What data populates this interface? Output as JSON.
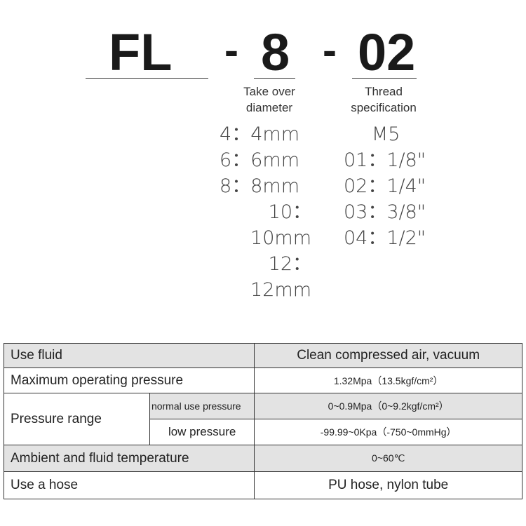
{
  "code": {
    "series": "FL",
    "sep1": "-",
    "diameter": "8",
    "sep2": "-",
    "thread": "02"
  },
  "diameter": {
    "label_line1": "Take over",
    "label_line2": "diameter",
    "options": [
      "4：4mm",
      "6：6mm",
      "8：8mm",
      "10：10mm",
      "12：12mm"
    ]
  },
  "thread": {
    "label_line1": "Thread",
    "label_line2": "specification",
    "options": [
      "M5",
      "01：1/8\"",
      "02：1/4\"",
      "03：3/8\"",
      "04：1/2\""
    ]
  },
  "specs": {
    "use_fluid": {
      "label": "Use fluid",
      "value": "Clean compressed air, vacuum"
    },
    "max_pressure": {
      "label": "Maximum operating pressure",
      "value": "1.32Mpa（13.5kgf/cm²）"
    },
    "pressure_range": {
      "label": "Pressure range",
      "normal_label": "normal use pressure",
      "normal_value": "0~0.9Mpa（0~9.2kgf/cm²）",
      "low_label": "low pressure",
      "low_value": "-99.99~0Kpa（-750~0mmHg）"
    },
    "temperature": {
      "label": "Ambient and fluid temperature",
      "value": "0~60℃"
    },
    "hose": {
      "label": "Use a hose",
      "value": "PU hose, nylon tube"
    }
  }
}
